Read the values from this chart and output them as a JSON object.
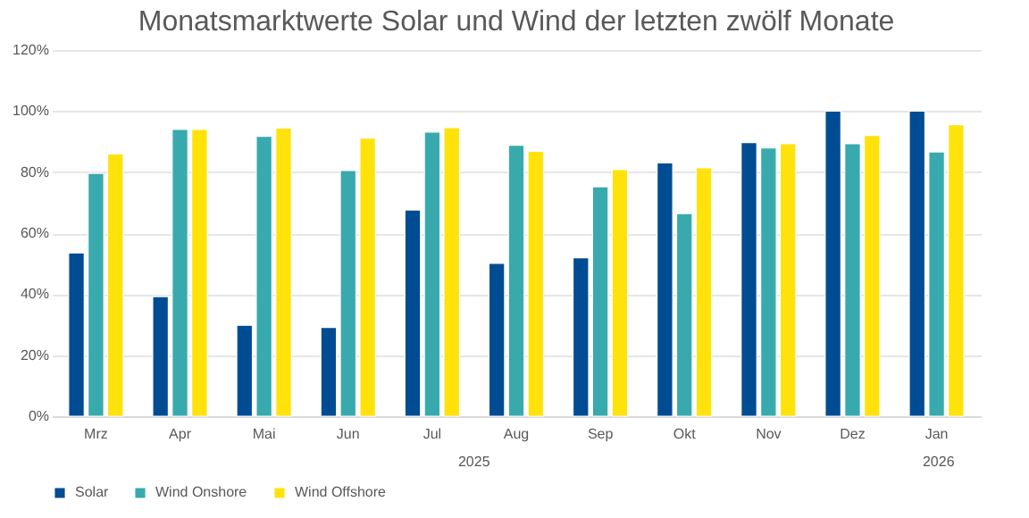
{
  "chart_data": {
    "type": "bar",
    "title": "Monatsmarktwerte Solar und Wind der letzten zwölf Monate",
    "categories": [
      "Mrz",
      "Apr",
      "Mai",
      "Jun",
      "Jul",
      "Aug",
      "Sep",
      "Okt",
      "Nov",
      "Dez",
      "Jan"
    ],
    "series": [
      {
        "name": "Solar",
        "color": "#004c93",
        "values": [
          53.5,
          39.2,
          29.8,
          29.1,
          67.6,
          50.1,
          51.9,
          83.0,
          89.7,
          100.0,
          100.0
        ]
      },
      {
        "name": "Wind Onshore",
        "color": "#38aaae",
        "values": [
          79.6,
          94.0,
          91.7,
          80.5,
          93.1,
          88.8,
          75.2,
          66.4,
          87.9,
          89.3,
          86.6
        ]
      },
      {
        "name": "Wind Offshore",
        "color": "#ffe20a",
        "values": [
          85.9,
          94.0,
          94.4,
          91.1,
          94.6,
          86.8,
          80.8,
          81.4,
          89.3,
          92.0,
          95.5
        ]
      }
    ],
    "ylim": [
      0,
      120
    ],
    "yticks": [
      {
        "value": 0,
        "label": "0%"
      },
      {
        "value": 20,
        "label": "20%"
      },
      {
        "value": 40,
        "label": "40%"
      },
      {
        "value": 60,
        "label": "60%"
      },
      {
        "value": 80,
        "label": "80%"
      },
      {
        "value": 100,
        "label": "100%"
      },
      {
        "value": 120,
        "label": "120%"
      }
    ],
    "grid": "y",
    "legend": "bottom",
    "annotations": [
      "2025",
      "2026"
    ]
  }
}
